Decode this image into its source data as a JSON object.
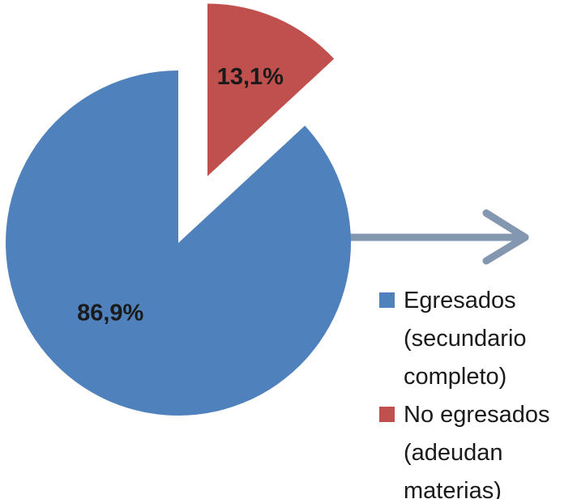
{
  "chart_data": {
    "type": "pie",
    "categories": [
      "Egresados\n(secundario\ncompleto)",
      "No egresados\n(adeudan\nmaterias)"
    ],
    "values": [
      86.9,
      13.1
    ],
    "value_labels": [
      "86,9%",
      "13,1%"
    ],
    "colors": [
      "#4f81bd",
      "#c0504d"
    ],
    "legend": "right"
  }
}
